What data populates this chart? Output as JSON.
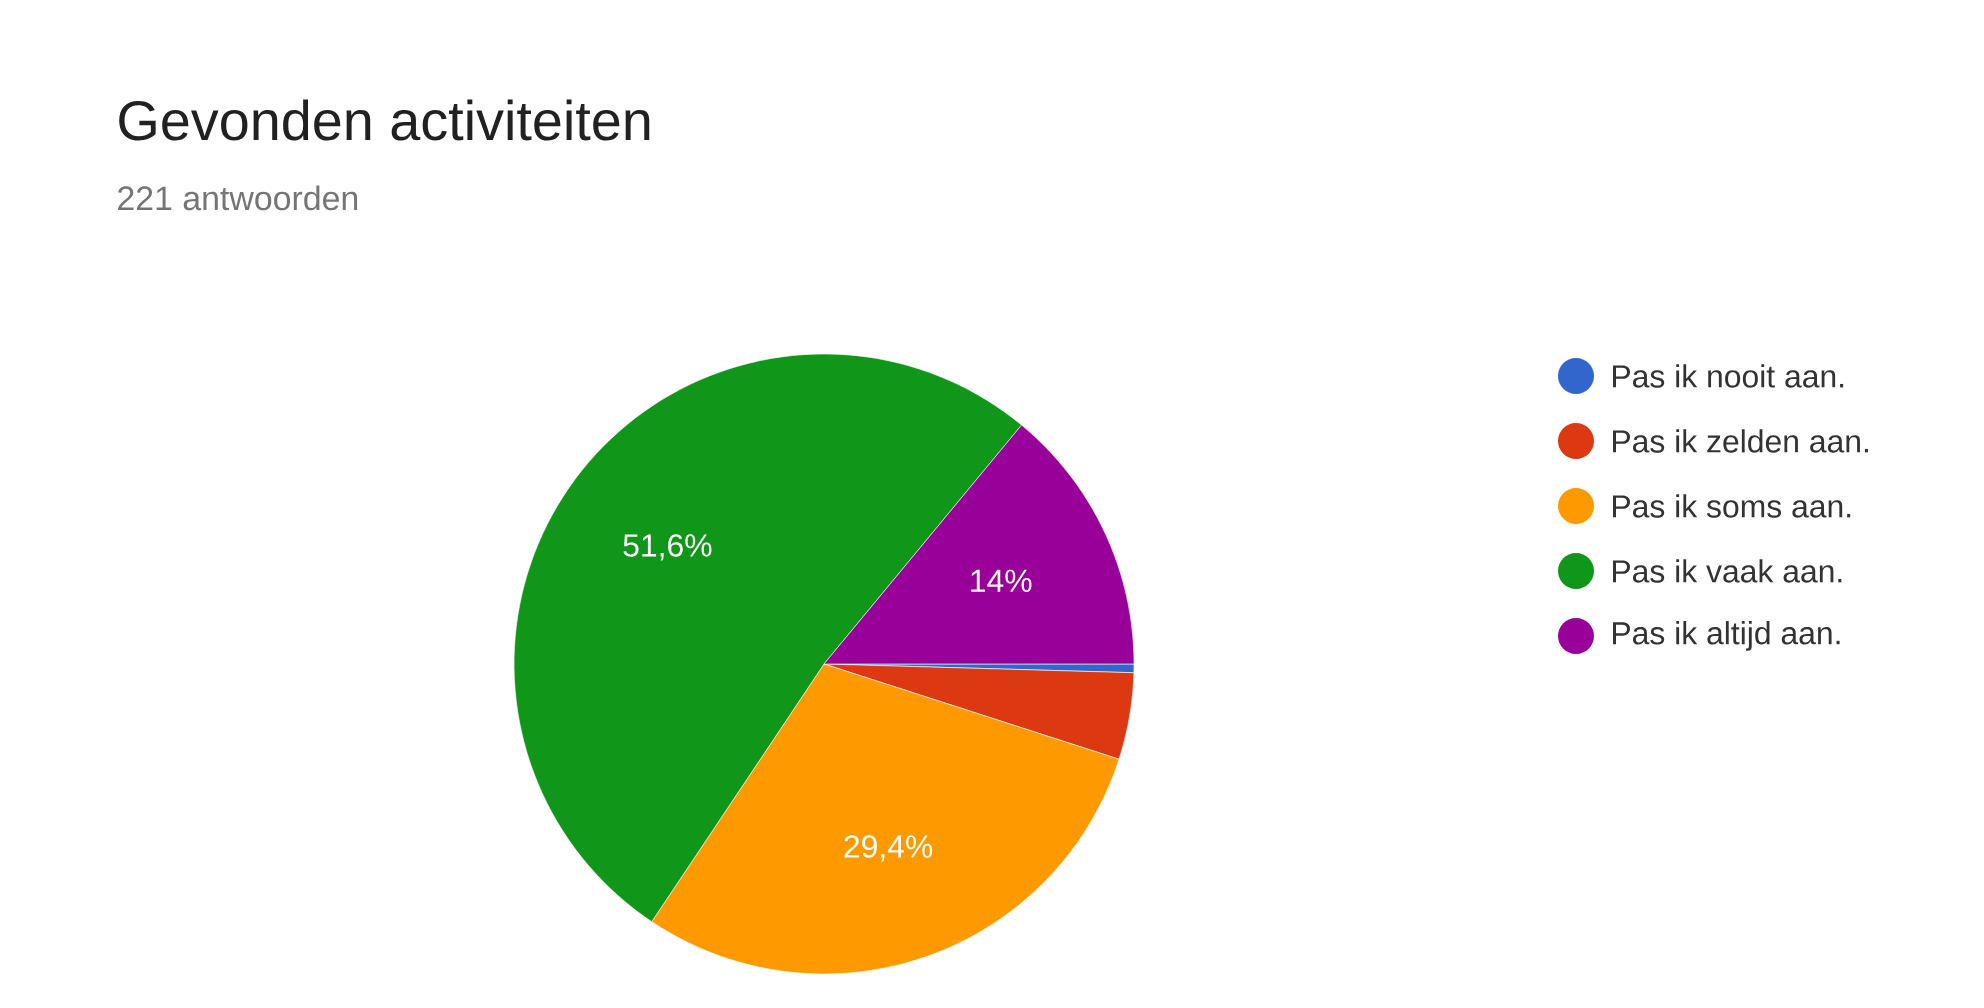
{
  "chart_data": {
    "type": "pie",
    "title": "Gevonden activiteiten",
    "subtitle": "221 antwoorden",
    "categories": [
      "Pas ik nooit aan.",
      "Pas ik zelden aan.",
      "Pas ik soms aan.",
      "Pas ik vaak aan.",
      "Pas ik altijd aan."
    ],
    "values": [
      0.45,
      4.52,
      29.4,
      51.6,
      14.0
    ],
    "value_labels": [
      null,
      null,
      "29,4%",
      "51,6%",
      "14%"
    ],
    "colors": [
      "#3366cc",
      "#dc3912",
      "#ff9900",
      "#109618",
      "#990099"
    ],
    "legend": "right"
  }
}
